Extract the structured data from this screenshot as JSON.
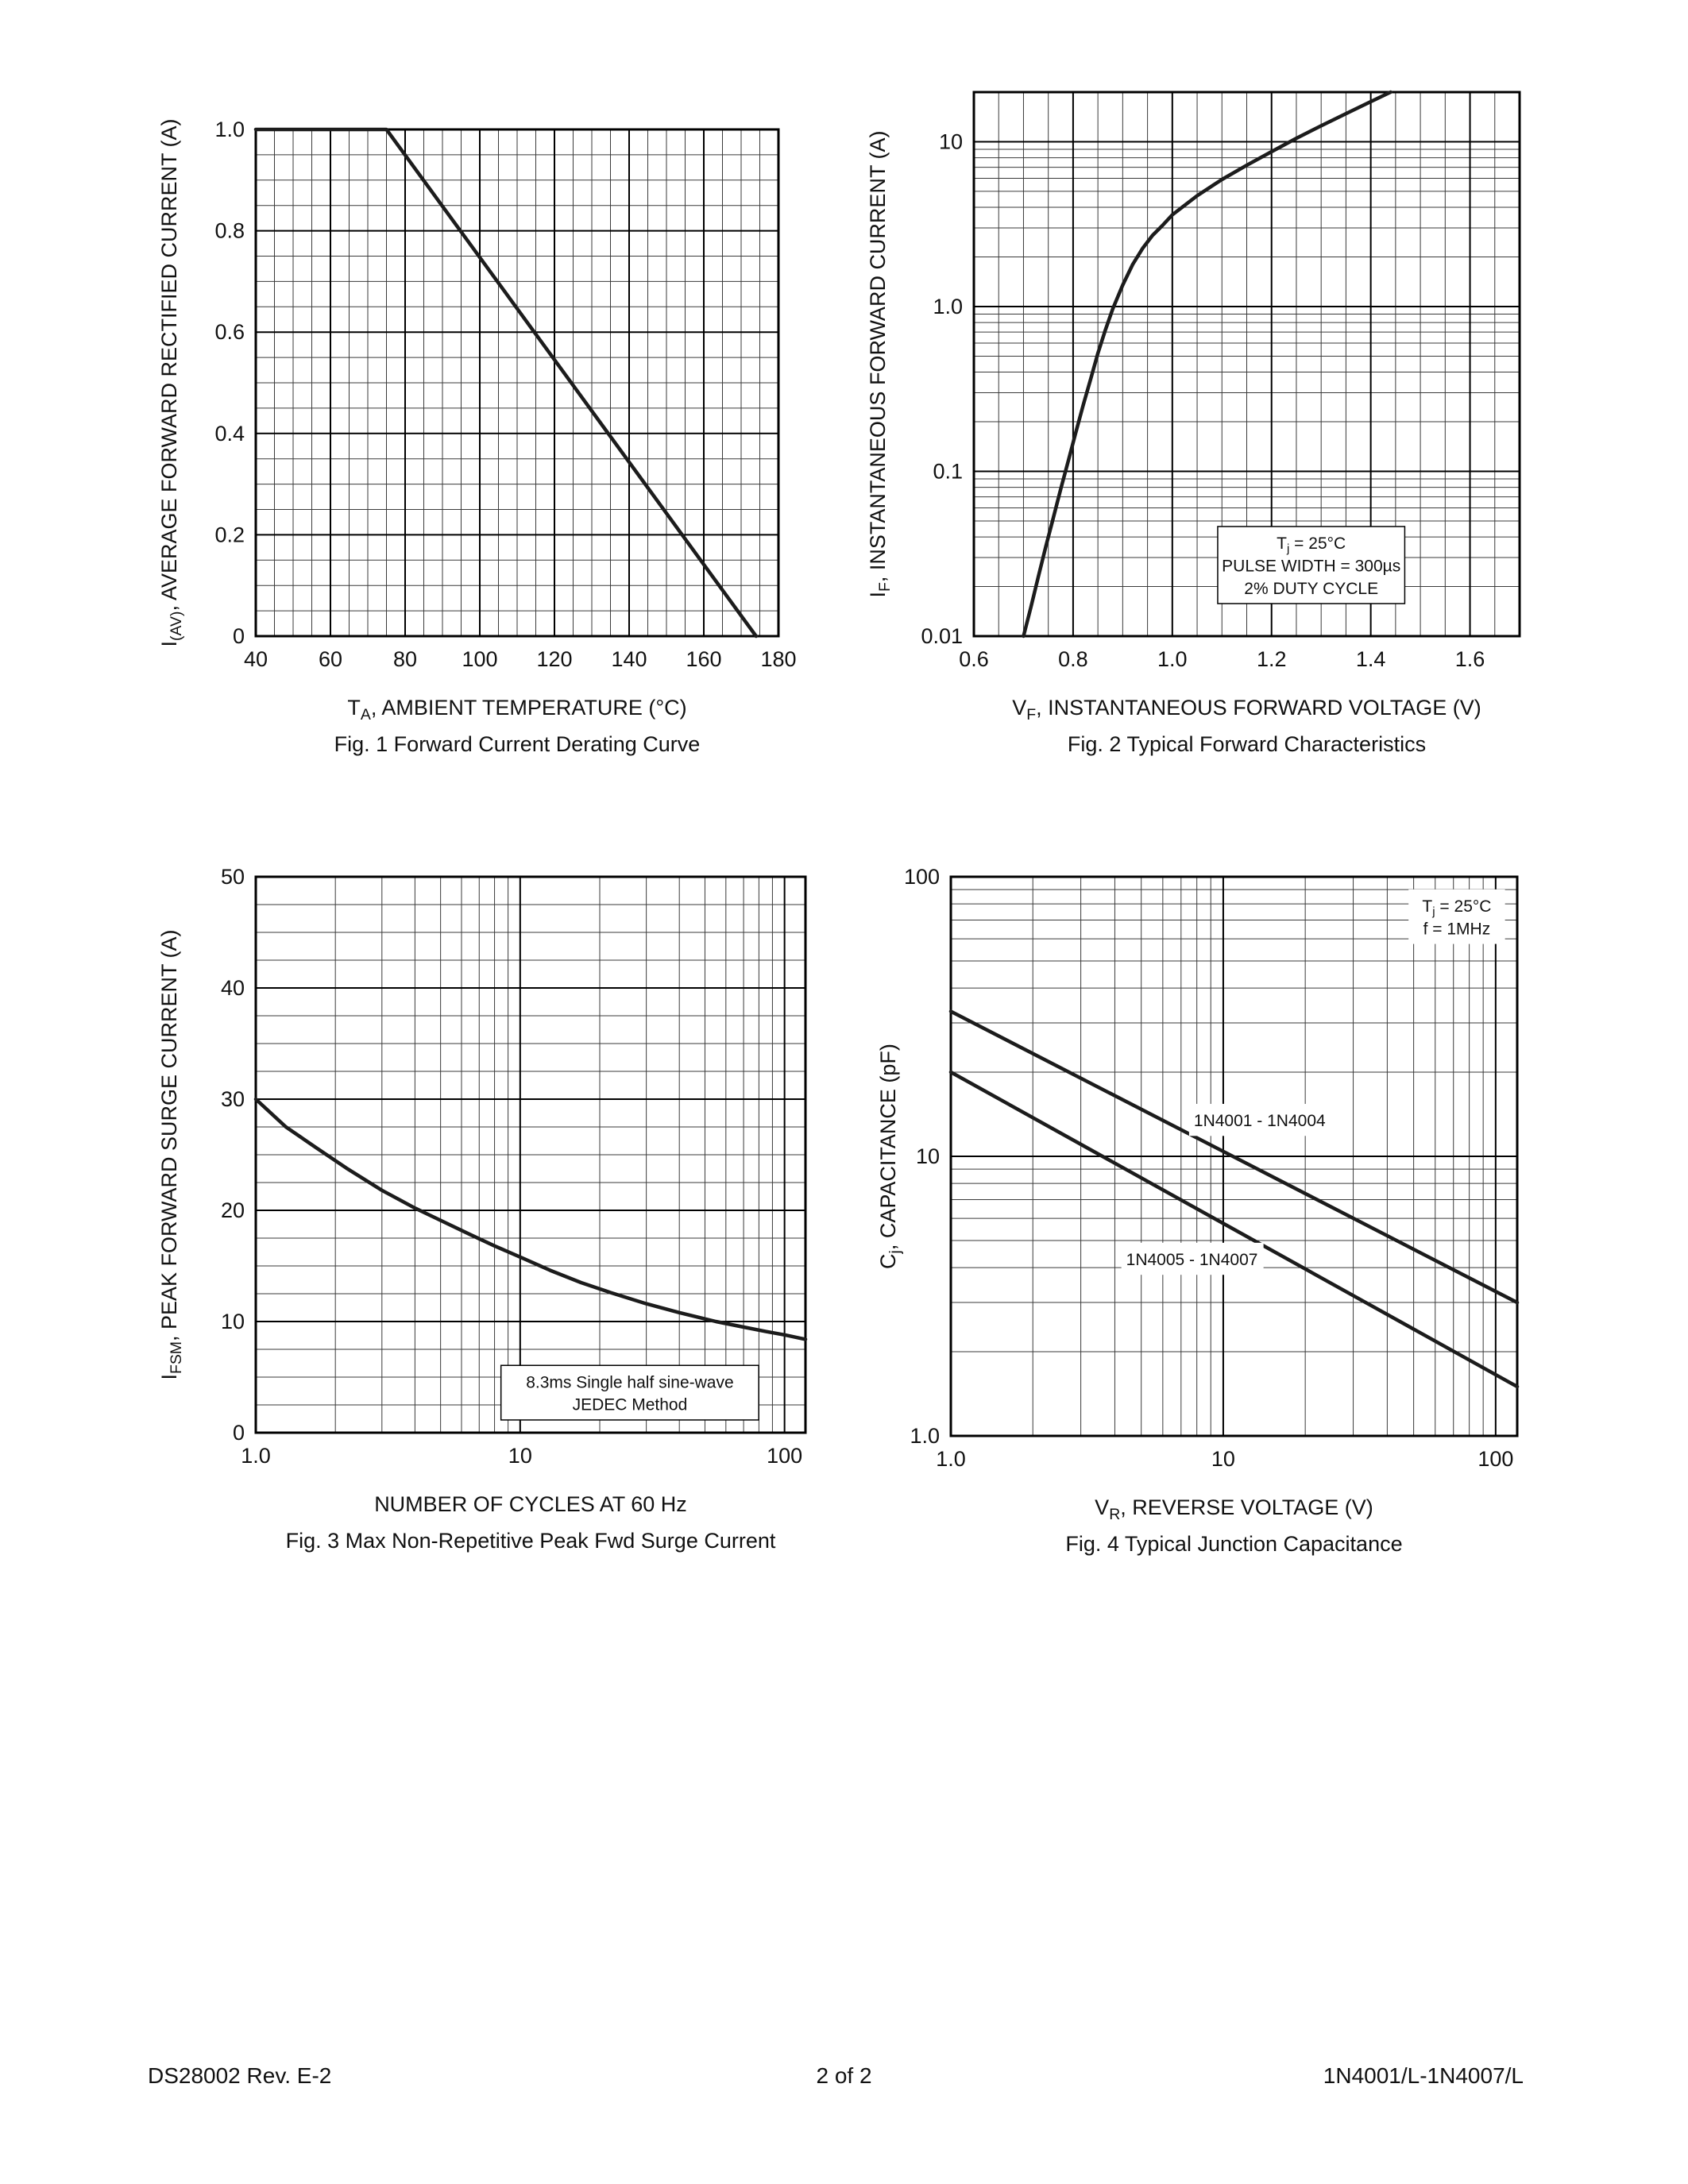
{
  "footer": {
    "left": "DS28002 Rev. E-2",
    "center": "2 of 2",
    "right": "1N4001/L-1N4007/L"
  },
  "colors": {
    "ink": "#111111",
    "curve": "#1c1c1c",
    "grid_minor": "#3a3a3a",
    "grid_major": "#000000"
  },
  "chart_data": [
    {
      "type": "line",
      "title": "Fig. 1 Forward Current Derating Curve",
      "xlabel_parts": [
        {
          "t": "T"
        },
        {
          "t": "A",
          "sub": true
        },
        {
          "t": ", AMBIENT TEMPERATURE (°C)"
        }
      ],
      "ylabel_parts": [
        {
          "t": "I"
        },
        {
          "t": "(AV)",
          "sub": true
        },
        {
          "t": ", AVERAGE FORWARD RECTIFIED CURRENT (A)"
        }
      ],
      "x_axis": {
        "scale": "linear",
        "min": 40,
        "max": 180,
        "ticks": [
          40,
          60,
          80,
          100,
          120,
          140,
          160,
          180
        ],
        "tick_labels": [
          "40",
          "60",
          "80",
          "100",
          "120",
          "140",
          "160",
          "180"
        ],
        "minor_step": 5
      },
      "y_axis": {
        "scale": "linear",
        "min": 0,
        "max": 1.0,
        "ticks": [
          0,
          0.2,
          0.4,
          0.6,
          0.8,
          1.0
        ],
        "tick_labels": [
          "0",
          "0.2",
          "0.4",
          "0.6",
          "0.8",
          "1.0"
        ],
        "minor_step": 0.05
      },
      "series": [
        {
          "name": "forward current derating",
          "points": [
            [
              40,
              1.0
            ],
            [
              75,
              1.0
            ],
            [
              174,
              0
            ]
          ]
        }
      ],
      "annotations": []
    },
    {
      "type": "line",
      "title": "Fig. 2 Typical Forward Characteristics",
      "xlabel_parts": [
        {
          "t": "V"
        },
        {
          "t": "F",
          "sub": true
        },
        {
          "t": ", INSTANTANEOUS FORWARD VOLTAGE (V)"
        }
      ],
      "ylabel_parts": [
        {
          "t": "I"
        },
        {
          "t": "F",
          "sub": true
        },
        {
          "t": ", INSTANTANEOUS FORWARD CURRENT (A)"
        }
      ],
      "x_axis": {
        "scale": "linear",
        "min": 0.6,
        "max": 1.7,
        "ticks": [
          0.6,
          0.8,
          1.0,
          1.2,
          1.4,
          1.6
        ],
        "tick_labels": [
          "0.6",
          "0.8",
          "1.0",
          "1.2",
          "1.4",
          "1.6"
        ],
        "minor_step": 0.05
      },
      "y_axis": {
        "scale": "log",
        "min": 0.01,
        "max": 20,
        "ticks": [
          0.01,
          0.1,
          1,
          10
        ],
        "tick_labels": [
          "0.01",
          "0.1",
          "1.0",
          "10"
        ]
      },
      "series": [
        {
          "name": "typical forward characteristic",
          "points": [
            [
              0.7,
              0.01
            ],
            [
              0.715,
              0.015
            ],
            [
              0.73,
              0.023
            ],
            [
              0.745,
              0.035
            ],
            [
              0.76,
              0.052
            ],
            [
              0.775,
              0.078
            ],
            [
              0.79,
              0.115
            ],
            [
              0.805,
              0.17
            ],
            [
              0.82,
              0.25
            ],
            [
              0.835,
              0.36
            ],
            [
              0.85,
              0.52
            ],
            [
              0.865,
              0.72
            ],
            [
              0.88,
              0.97
            ],
            [
              0.9,
              1.35
            ],
            [
              0.92,
              1.8
            ],
            [
              0.94,
              2.25
            ],
            [
              0.96,
              2.7
            ],
            [
              0.98,
              3.1
            ],
            [
              1.0,
              3.6
            ],
            [
              1.05,
              4.7
            ],
            [
              1.1,
              5.9
            ],
            [
              1.15,
              7.2
            ],
            [
              1.2,
              8.7
            ],
            [
              1.25,
              10.5
            ],
            [
              1.3,
              12.5
            ],
            [
              1.35,
              14.8
            ],
            [
              1.4,
              17.5
            ],
            [
              1.44,
              20
            ]
          ]
        }
      ],
      "annotations": [
        {
          "x": 1.28,
          "y": 0.027,
          "boxed": true,
          "align": "center",
          "lines": [
            [
              {
                "t": "T"
              },
              {
                "t": "j",
                "sub": true
              },
              {
                "t": " = 25°C"
              }
            ],
            [
              {
                "t": "PULSE WIDTH = 300µs"
              }
            ],
            [
              {
                "t": "2% DUTY CYCLE"
              }
            ]
          ]
        }
      ]
    },
    {
      "type": "line",
      "title": "Fig. 3  Max Non-Repetitive Peak Fwd Surge Current",
      "xlabel_parts": [
        {
          "t": "NUMBER OF CYCLES AT 60 Hz"
        }
      ],
      "ylabel_parts": [
        {
          "t": "I"
        },
        {
          "t": "FSM",
          "sub": true
        },
        {
          "t": ", PEAK FORWARD SURGE CURRENT (A)"
        }
      ],
      "x_axis": {
        "scale": "log",
        "min": 1,
        "max": 120,
        "ticks": [
          1,
          10,
          100
        ],
        "tick_labels": [
          "1.0",
          "10",
          "100"
        ]
      },
      "y_axis": {
        "scale": "linear",
        "min": 0,
        "max": 50,
        "ticks": [
          0,
          10,
          20,
          30,
          40,
          50
        ],
        "tick_labels": [
          "0",
          "10",
          "20",
          "30",
          "40",
          "50"
        ],
        "minor_step": 2.5
      },
      "series": [
        {
          "name": "peak forward surge current",
          "points": [
            [
              1,
              30
            ],
            [
              1.3,
              27.5
            ],
            [
              1.7,
              25.6
            ],
            [
              2.2,
              23.8
            ],
            [
              3,
              21.8
            ],
            [
              4,
              20.2
            ],
            [
              5,
              19.1
            ],
            [
              6.5,
              17.8
            ],
            [
              8,
              16.8
            ],
            [
              10,
              15.8
            ],
            [
              13,
              14.6
            ],
            [
              17,
              13.5
            ],
            [
              22,
              12.6
            ],
            [
              30,
              11.6
            ],
            [
              40,
              10.8
            ],
            [
              55,
              10.0
            ],
            [
              70,
              9.5
            ],
            [
              85,
              9.1
            ],
            [
              100,
              8.8
            ],
            [
              120,
              8.4
            ]
          ]
        }
      ],
      "annotations": [
        {
          "x": 26,
          "y": 3.6,
          "boxed": true,
          "align": "center",
          "lines": [
            [
              {
                "t": "8.3ms Single half sine-wave"
              }
            ],
            [
              {
                "t": "JEDEC Method"
              }
            ]
          ]
        }
      ]
    },
    {
      "type": "line",
      "title": "Fig. 4 Typical Junction Capacitance",
      "xlabel_parts": [
        {
          "t": "V"
        },
        {
          "t": "R",
          "sub": true
        },
        {
          "t": ", REVERSE VOLTAGE (V)"
        }
      ],
      "ylabel_parts": [
        {
          "t": "C"
        },
        {
          "t": "j",
          "sub": true
        },
        {
          "t": ", CAPACITANCE (pF)"
        }
      ],
      "x_axis": {
        "scale": "log",
        "min": 1,
        "max": 120,
        "ticks": [
          1,
          10,
          100
        ],
        "tick_labels": [
          "1.0",
          "10",
          "100"
        ]
      },
      "y_axis": {
        "scale": "log",
        "min": 1,
        "max": 100,
        "ticks": [
          1,
          10,
          100
        ],
        "tick_labels": [
          "1.0",
          "10",
          "100"
        ]
      },
      "series": [
        {
          "name": "1N4001 - 1N4004",
          "points": [
            [
              1,
              33
            ],
            [
              120,
              3.0
            ]
          ]
        },
        {
          "name": "1N4005 - 1N4007",
          "points": [
            [
              1,
              20
            ],
            [
              120,
              1.5
            ]
          ]
        }
      ],
      "annotations": [
        {
          "x": 72,
          "y": 72,
          "boxed": false,
          "align": "center",
          "lines": [
            [
              {
                "t": "T"
              },
              {
                "t": "j",
                "sub": true
              },
              {
                "t": " = 25°C"
              }
            ],
            [
              {
                "t": "f = 1MHz"
              }
            ]
          ]
        },
        {
          "x": 7.8,
          "y": 13.5,
          "boxed": false,
          "align": "left",
          "lines": [
            [
              {
                "t": "1N4001 - 1N4004"
              }
            ]
          ]
        },
        {
          "x": 4.4,
          "y": 4.3,
          "boxed": false,
          "align": "left",
          "lines": [
            [
              {
                "t": "1N4005 - 1N4007"
              }
            ]
          ]
        }
      ]
    }
  ]
}
